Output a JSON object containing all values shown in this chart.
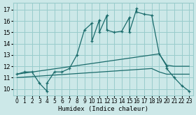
{
  "xlabel": "Humidex (Indice chaleur)",
  "xlim": [
    -0.5,
    23.5
  ],
  "ylim": [
    9.4,
    17.6
  ],
  "xticks": [
    0,
    1,
    2,
    3,
    4,
    5,
    6,
    7,
    8,
    9,
    10,
    11,
    12,
    13,
    14,
    15,
    16,
    17,
    18,
    19,
    20,
    21,
    22,
    23
  ],
  "yticks": [
    10,
    11,
    12,
    13,
    14,
    15,
    16,
    17
  ],
  "bg_color": "#cce8e8",
  "grid_color": "#99cccc",
  "line_color": "#1a6b6b",
  "main_x": [
    0,
    1,
    2,
    3,
    4,
    4,
    5,
    6,
    7,
    8,
    9,
    10,
    10,
    11,
    11,
    12,
    12,
    13,
    14,
    15,
    15,
    16,
    16,
    17,
    18,
    19,
    20,
    20,
    21,
    22,
    23
  ],
  "main_y": [
    11.3,
    11.5,
    11.5,
    10.5,
    9.8,
    10.5,
    11.5,
    11.5,
    11.8,
    13.0,
    15.2,
    15.8,
    14.2,
    16.1,
    15.0,
    16.5,
    15.2,
    15.0,
    15.1,
    16.3,
    15.0,
    17.1,
    16.8,
    16.6,
    16.5,
    13.1,
    12.0,
    11.8,
    11.0,
    10.3,
    9.8
  ],
  "upper_x": [
    0,
    18,
    19,
    20,
    21,
    22,
    23
  ],
  "upper_y": [
    11.3,
    13.0,
    13.1,
    12.1,
    12.0,
    12.0,
    12.0
  ],
  "lower_x": [
    0,
    18,
    19,
    20,
    21,
    22,
    23
  ],
  "lower_y": [
    11.0,
    11.8,
    11.5,
    11.3,
    11.3,
    11.3,
    11.3
  ]
}
